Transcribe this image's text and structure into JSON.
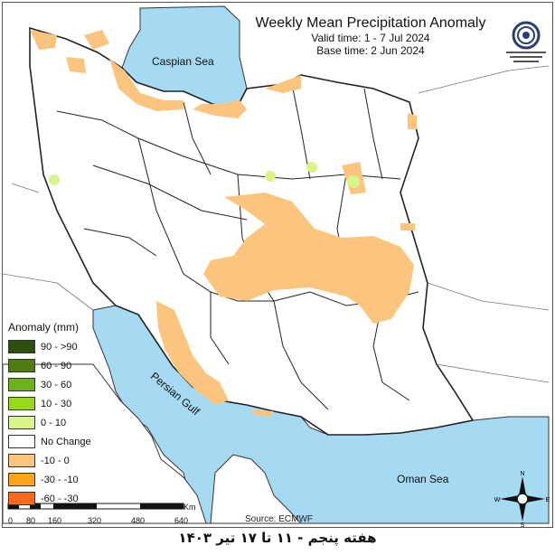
{
  "map": {
    "title": "Weekly Mean Precipitation Anomaly",
    "valid_time": "Valid time: 1 - 7 Jul 2024",
    "base_time": "Base time: 2 Jun 2024",
    "source": "Source: ECMWF",
    "water_labels": {
      "caspian": "Caspian Sea",
      "gulf": "Persian Gulf",
      "oman": "Oman Sea"
    },
    "colors": {
      "water": "#a6d9f2",
      "land": "#ffffff",
      "border": "#222222",
      "neg_0_10": "#fcc57f"
    }
  },
  "legend": {
    "title": "Anomaly (mm)",
    "items": [
      {
        "label": "90 - >90",
        "color": "#2f4f0f"
      },
      {
        "label": "60 - 90",
        "color": "#4f7d12"
      },
      {
        "label": "30 - 60",
        "color": "#6cb21a"
      },
      {
        "label": "10 - 30",
        "color": "#96d91e"
      },
      {
        "label": "0 - 10",
        "color": "#d9f58a"
      },
      {
        "label": "No Change",
        "color": "#ffffff"
      },
      {
        "label": "-10 - 0",
        "color": "#fcc57f"
      },
      {
        "label": "-30 - -10",
        "color": "#ffa31a"
      },
      {
        "label": "-60 - -30",
        "color": "#ff6a1a"
      }
    ]
  },
  "scale_bar": {
    "unit": "Km",
    "ticks": [
      "0",
      "80",
      "160",
      "320",
      "480",
      "640"
    ]
  },
  "compass": {
    "n": "N",
    "s": "S",
    "e": "E",
    "w": "W"
  },
  "footer": "هفته پنجم - ۱۱ تا ۱۷ تیر ۱۴۰۳"
}
